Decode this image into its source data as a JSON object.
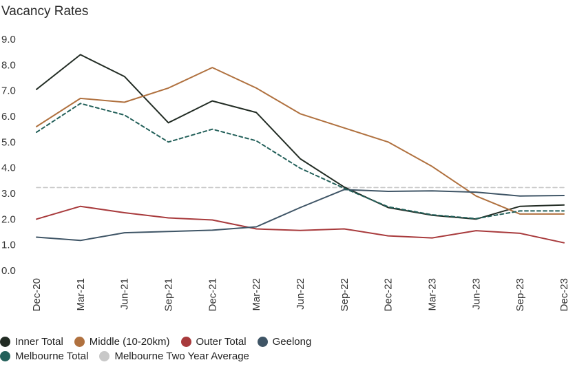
{
  "chart_data": {
    "type": "line",
    "title": "Vacancy Rates",
    "xlabel": "",
    "ylabel": "",
    "categories": [
      "Dec-20",
      "Mar-21",
      "Jun-21",
      "Sep-21",
      "Dec-21",
      "Mar-22",
      "Jun-22",
      "Sep-22",
      "Dec-22",
      "Mar-23",
      "Jun-23",
      "Sep-23",
      "Dec-23"
    ],
    "ylim": [
      0,
      9
    ],
    "yticks": [
      "0.0",
      "1.0",
      "2.0",
      "3.0",
      "4.0",
      "5.0",
      "6.0",
      "7.0",
      "8.0",
      "9.0"
    ],
    "grid": false,
    "legend_position": "bottom-left",
    "series": [
      {
        "name": "Inner Total",
        "color": "#222c24",
        "style": "solid",
        "values": [
          7.05,
          8.4,
          7.55,
          5.75,
          6.6,
          6.15,
          4.35,
          3.25,
          2.45,
          2.15,
          2.0,
          2.5,
          2.55
        ]
      },
      {
        "name": "Middle (10-20km)",
        "color": "#b0713f",
        "style": "solid",
        "values": [
          5.6,
          6.7,
          6.55,
          7.1,
          7.9,
          7.1,
          6.1,
          5.55,
          5.0,
          4.05,
          2.9,
          2.2,
          2.2
        ]
      },
      {
        "name": "Outer Total",
        "color": "#a83a3c",
        "style": "solid",
        "values": [
          2.0,
          2.5,
          2.25,
          2.05,
          1.97,
          1.62,
          1.56,
          1.62,
          1.35,
          1.27,
          1.55,
          1.45,
          1.08
        ]
      },
      {
        "name": "Geelong",
        "color": "#3f5566",
        "style": "solid",
        "values": [
          1.3,
          1.17,
          1.47,
          1.52,
          1.57,
          1.7,
          2.45,
          3.15,
          3.08,
          3.1,
          3.05,
          2.9,
          2.92
        ]
      },
      {
        "name": "Melbourne Total",
        "color": "#23605a",
        "style": "dashed",
        "values": [
          5.38,
          6.5,
          6.05,
          5.0,
          5.5,
          5.05,
          3.98,
          3.2,
          2.48,
          2.17,
          2.02,
          2.32,
          2.32
        ]
      },
      {
        "name": "Melbourne Two Year Average",
        "color": "#c8c8c8",
        "style": "dashed",
        "values": [
          3.23,
          3.23,
          3.23,
          3.23,
          3.23,
          3.23,
          3.23,
          3.23,
          3.23,
          3.23,
          3.23,
          3.23,
          3.23
        ]
      }
    ]
  }
}
